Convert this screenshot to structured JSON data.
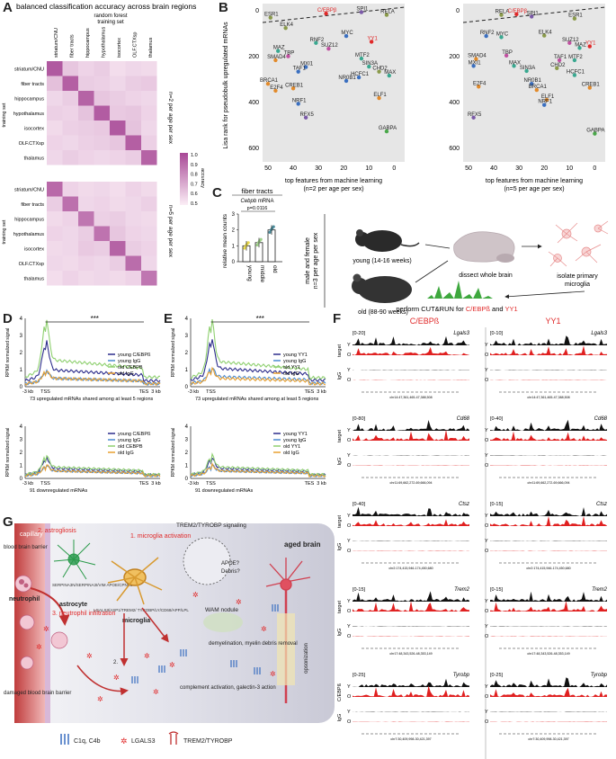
{
  "panels": {
    "A": "A",
    "B": "B",
    "C": "C",
    "D": "D",
    "E": "E",
    "F": "F",
    "G": "G"
  },
  "panelA": {
    "title": "balanced classification accuracy across brain regions",
    "model_line1": "random forest",
    "model_line2": "training set",
    "columns": [
      "striatum/CNU",
      "fiber tracts",
      "hippocampus",
      "hypothalamus",
      "isocortex",
      "OLF.CTXsp",
      "thalamus"
    ],
    "rows_top": [
      "striatum/CNU",
      "fiber tracts",
      "hippocampus",
      "hypothalamus",
      "isocortex",
      "OLF.CTXsp",
      "thalamus"
    ],
    "rows_bottom": [
      "striatum/CNU",
      "fiber tracts",
      "hippocampus",
      "hypothalamus",
      "isocortex",
      "OLF.CTXsp",
      "thalamus"
    ],
    "group_top": "n=2 per age per sex",
    "group_bottom": "n=5 per age per sex",
    "ylabel": "training set",
    "colorbar_label": "accuracy",
    "colorbar_ticks": [
      "1.0",
      "0.9",
      "0.8",
      "0.7",
      "0.6",
      "0.5"
    ],
    "matrix_top": [
      [
        0.95,
        0.62,
        0.58,
        0.6,
        0.55,
        0.57,
        0.56
      ],
      [
        0.64,
        0.93,
        0.6,
        0.59,
        0.57,
        0.6,
        0.61
      ],
      [
        0.57,
        0.6,
        0.92,
        0.62,
        0.6,
        0.58,
        0.57
      ],
      [
        0.59,
        0.58,
        0.63,
        0.94,
        0.61,
        0.62,
        0.58
      ],
      [
        0.56,
        0.59,
        0.6,
        0.61,
        0.95,
        0.63,
        0.57
      ],
      [
        0.58,
        0.57,
        0.59,
        0.6,
        0.62,
        0.93,
        0.59
      ],
      [
        0.57,
        0.6,
        0.58,
        0.57,
        0.58,
        0.6,
        0.92
      ]
    ],
    "matrix_bottom": [
      [
        0.9,
        0.58,
        0.56,
        0.57,
        0.55,
        0.58,
        0.56
      ],
      [
        0.6,
        0.88,
        0.57,
        0.58,
        0.56,
        0.57,
        0.59
      ],
      [
        0.56,
        0.58,
        0.86,
        0.59,
        0.6,
        0.57,
        0.56
      ],
      [
        0.58,
        0.57,
        0.6,
        0.87,
        0.62,
        0.58,
        0.57
      ],
      [
        0.56,
        0.57,
        0.61,
        0.6,
        0.92,
        0.6,
        0.58
      ],
      [
        0.57,
        0.56,
        0.58,
        0.57,
        0.6,
        0.89,
        0.57
      ],
      [
        0.55,
        0.58,
        0.56,
        0.57,
        0.56,
        0.58,
        0.86
      ]
    ]
  },
  "panelB": {
    "ylabel": "Lisa rank for pseudobulk upregulated mRNAs",
    "xticks": [
      "50",
      "40",
      "30",
      "20",
      "10",
      "0"
    ],
    "yticks": [
      "0",
      "200",
      "400",
      "600"
    ],
    "left_xlabel1": "top features from machine learning",
    "left_xlabel2": "(n=2 per age per sex)",
    "right_xlabel1": "top features from machine learning",
    "right_xlabel2": "(n=5 per age per sex)",
    "left_points": [
      {
        "name": "ESR1",
        "x": 49,
        "y": 30,
        "color": "#8a9a4a"
      },
      {
        "name": "C/EBPβ",
        "x": 27,
        "y": 12,
        "color": "#e02828"
      },
      {
        "name": "SPI1",
        "x": 13,
        "y": 6,
        "color": "#7b5aa8"
      },
      {
        "name": "RELA",
        "x": 3,
        "y": 18,
        "color": "#8a9a4a"
      },
      {
        "name": "ELK4",
        "x": 43,
        "y": 75,
        "color": "#8a9a4a"
      },
      {
        "name": "MYC",
        "x": 19,
        "y": 110,
        "color": "#3a6fc0"
      },
      {
        "name": "YY1",
        "x": 9,
        "y": 135,
        "color": "#e02828"
      },
      {
        "name": "RNF2",
        "x": 31,
        "y": 140,
        "color": "#3aa890"
      },
      {
        "name": "SUZ12",
        "x": 26,
        "y": 165,
        "color": "#c050a0"
      },
      {
        "name": "MAZ",
        "x": 46,
        "y": 175,
        "color": "#3aa890"
      },
      {
        "name": "TBP",
        "x": 42,
        "y": 198,
        "color": "#c050a0"
      },
      {
        "name": "SMAD4",
        "x": 47,
        "y": 215,
        "color": "#e28a2a"
      },
      {
        "name": "MTF2",
        "x": 13,
        "y": 208,
        "color": "#3aa890"
      },
      {
        "name": "MXI1",
        "x": 35,
        "y": 245,
        "color": "#3a6fc0"
      },
      {
        "name": "SIN3A",
        "x": 10,
        "y": 243,
        "color": "#3aa890"
      },
      {
        "name": "TAF1",
        "x": 38,
        "y": 265,
        "color": "#3a6fc0"
      },
      {
        "name": "CHD2",
        "x": 6,
        "y": 265,
        "color": "#8a9a4a"
      },
      {
        "name": "MAX",
        "x": 2,
        "y": 282,
        "color": "#3aa890"
      },
      {
        "name": "HCFC1",
        "x": 14,
        "y": 290,
        "color": "#3a6fc0"
      },
      {
        "name": "NR0B1",
        "x": 19,
        "y": 305,
        "color": "#3a6fc0"
      },
      {
        "name": "BRCA1",
        "x": 50,
        "y": 318,
        "color": "#e28a2a"
      },
      {
        "name": "CREB1",
        "x": 40,
        "y": 338,
        "color": "#e28a2a"
      },
      {
        "name": "E2F4",
        "x": 47,
        "y": 348,
        "color": "#e28a2a"
      },
      {
        "name": "NRF1",
        "x": 38,
        "y": 405,
        "color": "#3a6fc0"
      },
      {
        "name": "ELF1",
        "x": 6,
        "y": 380,
        "color": "#e28a2a"
      },
      {
        "name": "RFX5",
        "x": 35,
        "y": 465,
        "color": "#7b5aa8"
      },
      {
        "name": "GABPA",
        "x": 3,
        "y": 525,
        "color": "#4aa84a"
      }
    ],
    "right_points": [
      {
        "name": "RELA",
        "x": 37,
        "y": 18,
        "color": "#8a9a4a"
      },
      {
        "name": "C/EBPβ",
        "x": 31,
        "y": 15,
        "color": "#e02828"
      },
      {
        "name": "SPI1",
        "x": 25,
        "y": 25,
        "color": "#7b5aa8"
      },
      {
        "name": "ESR1",
        "x": 8,
        "y": 34,
        "color": "#8a9a4a"
      },
      {
        "name": "RNF2",
        "x": 43,
        "y": 110,
        "color": "#3a6fc0"
      },
      {
        "name": "MYC",
        "x": 37,
        "y": 115,
        "color": "#3aa890"
      },
      {
        "name": "ELK4",
        "x": 20,
        "y": 108,
        "color": "#8a9a4a"
      },
      {
        "name": "SUZ12",
        "x": 10,
        "y": 140,
        "color": "#c050a0"
      },
      {
        "name": "MAZ",
        "x": 6,
        "y": 162,
        "color": "#3aa890"
      },
      {
        "name": "YY1",
        "x": 2,
        "y": 155,
        "color": "#e02828"
      },
      {
        "name": "TBP",
        "x": 35,
        "y": 195,
        "color": "#c050a0"
      },
      {
        "name": "SMAD4",
        "x": 47,
        "y": 210,
        "color": "#e28a2a"
      },
      {
        "name": "TAF1",
        "x": 14,
        "y": 215,
        "color": "#c050a0"
      },
      {
        "name": "MTF2",
        "x": 8,
        "y": 215,
        "color": "#3aa890"
      },
      {
        "name": "MXI1",
        "x": 48,
        "y": 240,
        "color": "#3a6fc0"
      },
      {
        "name": "MAX",
        "x": 32,
        "y": 240,
        "color": "#3aa890"
      },
      {
        "name": "CHD2",
        "x": 15,
        "y": 250,
        "color": "#8a9a4a"
      },
      {
        "name": "SIN3A",
        "x": 27,
        "y": 262,
        "color": "#3aa890"
      },
      {
        "name": "HCFC1",
        "x": 8,
        "y": 280,
        "color": "#3aa890"
      },
      {
        "name": "E2F4",
        "x": 46,
        "y": 330,
        "color": "#e28a2a"
      },
      {
        "name": "NR0B1",
        "x": 25,
        "y": 318,
        "color": "#3a6fc0"
      },
      {
        "name": "BRCA1",
        "x": 23,
        "y": 345,
        "color": "#e28a2a"
      },
      {
        "name": "CREB1",
        "x": 2,
        "y": 335,
        "color": "#e28a2a"
      },
      {
        "name": "ELF1",
        "x": 19,
        "y": 388,
        "color": "#e28a2a"
      },
      {
        "name": "NRF1",
        "x": 20,
        "y": 410,
        "color": "#3a6fc0"
      },
      {
        "name": "RFX5",
        "x": 48,
        "y": 465,
        "color": "#7b5aa8"
      },
      {
        "name": "GABPA",
        "x": 0,
        "y": 535,
        "color": "#4aa84a"
      }
    ]
  },
  "panelC": {
    "title": "fiber tracts",
    "gene_prefix": "Cebpb",
    "gene_suffix": " mRNA",
    "pvalue": "p=0.0116",
    "ylabel": "relative mean counts",
    "yticks": [
      "3",
      "2",
      "1",
      "0"
    ],
    "groups": [
      "young",
      "middle",
      "old"
    ],
    "means": [
      1.0,
      1.2,
      2.0
    ]
  },
  "workflow": {
    "side_label1": "male and female",
    "side_label2": "n=3 per age per sex",
    "young": "young (14-16 weeks)",
    "old": "old (88-90 weeks)",
    "step1": "dissect whole brain",
    "step2a": "isolate primary",
    "step2b": "microglia",
    "step3_prefix": "perform CUT&RUN for ",
    "step3_cebpb": "C/EBPß",
    "step3_and": " and ",
    "step3_yy1": "YY1"
  },
  "panelD": {
    "ylabel": "RPKM normalized signal",
    "top_yticks": [
      "4",
      "3",
      "2",
      "1",
      "0"
    ],
    "bottom_yticks": [
      "4",
      "3",
      "2",
      "1",
      "0"
    ],
    "xticks": [
      "-3 kb",
      "TSS",
      "TES",
      "3 kb"
    ],
    "sig": "***",
    "legend_top": [
      "young C/EBPß",
      "young IgG",
      "old CEBPB",
      "old IgG"
    ],
    "legend_bottom": [
      "young C/EBPß",
      "young IgG",
      "old CEBPB",
      "old IgG"
    ],
    "top_caption": "73 upregulated mRNAs shared among at least 5 regions",
    "bottom_caption": "91 downregulated mRNAs"
  },
  "panelE": {
    "ylabel": "RPKM normalized signal",
    "top_yticks": [
      "4",
      "3",
      "2",
      "1",
      "0"
    ],
    "bottom_yticks": [
      "4",
      "3",
      "2",
      "1",
      "0"
    ],
    "xticks": [
      "-3 kb",
      "TSS",
      "TES",
      "3 kb"
    ],
    "sig": "***",
    "legend_top": [
      "young YY1",
      "young IgG",
      "old YY1",
      "old IgG"
    ],
    "legend_bottom": [
      "young YY1",
      "young IgG",
      "old YY1",
      "old IgG"
    ],
    "top_caption": "73 upregulated mRNAs shared among at least 5 regions",
    "bottom_caption": "91 downregulated mRNAs"
  },
  "panelF": {
    "col1": "C/EBPß",
    "col2": "YY1",
    "genes": [
      {
        "gene": "Lgals3",
        "s1": "[0-20]",
        "s2": "[0-10]",
        "coord1": "chr14:47,361,465-47,388,508",
        "coord2": "chr14:47,361,465-47,388,508"
      },
      {
        "gene": "Cd68",
        "s1": "[0-80]",
        "s2": "[0-40]",
        "coord1": "chr11:69,662,272-69,666,094",
        "coord2": "chr11:69,662,272-69,666,094"
      },
      {
        "gene": "Ctsz",
        "s1": "[0-40]",
        "s2": "[0-15]",
        "coord1": "chr2:174,415,946-174,450,680",
        "coord2": "chr2:174,415,946-174,450,680"
      },
      {
        "gene": "Trem2",
        "s1": "[0-15]",
        "s2": "[0-15]",
        "coord1": "chr17:48,343,526-48,353,149",
        "coord2": "chr17:48,343,526-48,353,149"
      },
      {
        "gene": "Tyrobp",
        "s1": "[0-25]",
        "s2": "[0-25]",
        "coord1": "chr7:30,409,998-30,421,397",
        "coord2": "chr7:30,409,998-30,421,397"
      }
    ],
    "target": "target",
    "igg": "IgG",
    "y": "Y",
    "o": "O",
    "side_last": "C/EBPß"
  },
  "panelG": {
    "capillary": "capillary",
    "bbb": "blood brain barrier",
    "neutrophil": "neutrophil",
    "astrogliosis": "2. astrogliosis",
    "astro_genes": "SERPINA3N/SERPINA3I/VIM APOE/CPNE5",
    "astrocyte": "astrocyte",
    "neutro_inf": "3. neutrophil infiltration",
    "damaged": "damaged blood brain barrier",
    "microglia_act": "1. microglia activation",
    "micro_genes": "LGALS3/ASP1/TREM2/ TYROBP/LY/CD68/APP/LPL",
    "microglia": "microglia",
    "trem_sig": "TREM2/TYROBP signaling",
    "apoe": "APOE?",
    "debris": "Debris?",
    "wam": "WAM nodule",
    "aged": "aged brain",
    "demyel": "demyelination, myelin debris removal",
    "complement": "complement activation, galectin-3 action",
    "opsonization": "opsonization",
    "step1": "1.",
    "step2": "2.",
    "legend1": "C1q, C4b",
    "legend2": "LGALS3",
    "legend3": "TREM2/TYROBP"
  },
  "colors": {
    "heat_high": "#b0509a",
    "heat_low": "#fbeef6",
    "panel_bg": "#e6e6e6",
    "red": "#e02828",
    "young_blue": "#2d2d8c",
    "young_igg": "#4a8ad0",
    "old_green": "#8fd070",
    "old_igg": "#e8a030",
    "track_black": "#111111",
    "track_red": "#e02020"
  }
}
